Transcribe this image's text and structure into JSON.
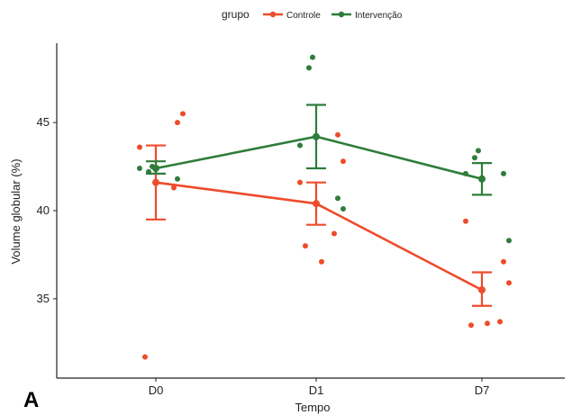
{
  "panel_label": "A",
  "chart_data": {
    "type": "line",
    "xlabel": "Tempo",
    "ylabel": "Volume globular (%)",
    "categories": [
      "D0",
      "D1",
      "D7"
    ],
    "ylim": [
      30.5,
      49.5
    ],
    "yticks": [
      35,
      40,
      45
    ],
    "grid": false,
    "legend": {
      "title": "grupo",
      "position": "top"
    },
    "series": [
      {
        "name": "Controle",
        "color": "#EE4B2B",
        "mean": [
          41.6,
          40.4,
          35.5
        ],
        "error_low": [
          39.5,
          39.2,
          34.6
        ],
        "error_high": [
          43.7,
          41.6,
          36.5
        ],
        "points": [
          {
            "x": "D0",
            "y": 43.6
          },
          {
            "x": "D0",
            "y": 45.0
          },
          {
            "x": "D0",
            "y": 45.5
          },
          {
            "x": "D0",
            "y": 41.3
          },
          {
            "x": "D0",
            "y": 31.7
          },
          {
            "x": "D1",
            "y": 41.6
          },
          {
            "x": "D1",
            "y": 44.3
          },
          {
            "x": "D1",
            "y": 42.8
          },
          {
            "x": "D1",
            "y": 38.7
          },
          {
            "x": "D1",
            "y": 38.0
          },
          {
            "x": "D1",
            "y": 37.1
          },
          {
            "x": "D7",
            "y": 39.4
          },
          {
            "x": "D7",
            "y": 37.1
          },
          {
            "x": "D7",
            "y": 35.9
          },
          {
            "x": "D7",
            "y": 33.7
          },
          {
            "x": "D7",
            "y": 33.5
          },
          {
            "x": "D7",
            "y": 33.6
          }
        ]
      },
      {
        "name": "Intervenção",
        "color": "#2E7D3A",
        "mean": [
          42.4,
          44.2,
          41.8
        ],
        "error_low": [
          42.1,
          42.4,
          40.9
        ],
        "error_high": [
          42.8,
          46.0,
          42.7
        ],
        "points": [
          {
            "x": "D0",
            "y": 42.5
          },
          {
            "x": "D0",
            "y": 42.2
          },
          {
            "x": "D0",
            "y": 42.4
          },
          {
            "x": "D0",
            "y": 41.8
          },
          {
            "x": "D1",
            "y": 48.7
          },
          {
            "x": "D1",
            "y": 48.1
          },
          {
            "x": "D1",
            "y": 43.7
          },
          {
            "x": "D1",
            "y": 40.7
          },
          {
            "x": "D1",
            "y": 40.1
          },
          {
            "x": "D7",
            "y": 43.4
          },
          {
            "x": "D7",
            "y": 43.0
          },
          {
            "x": "D7",
            "y": 42.1
          },
          {
            "x": "D7",
            "y": 42.1
          },
          {
            "x": "D7",
            "y": 38.3
          }
        ]
      }
    ]
  }
}
